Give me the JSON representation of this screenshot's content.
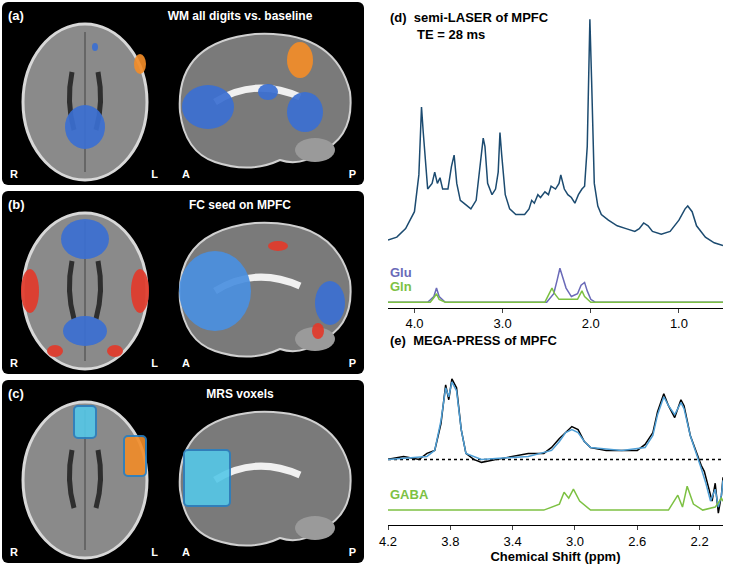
{
  "brain_panels": [
    {
      "label": "(a)",
      "title": "WM all digits vs. baseline",
      "axial_labels": [
        "R",
        "L"
      ],
      "sagittal_labels": [
        "A",
        "P"
      ]
    },
    {
      "label": "(b)",
      "title": "FC seed on MPFC",
      "axial_labels": [
        "R",
        "L"
      ],
      "sagittal_labels": [
        "A",
        "P"
      ]
    },
    {
      "label": "(c)",
      "title": "MRS voxels",
      "axial_labels": [
        "R",
        "L"
      ],
      "sagittal_labels": [
        "A",
        "P"
      ]
    }
  ],
  "chart_data": [
    {
      "type": "line",
      "label": "(d)",
      "title": "semi-LASER of MPFC",
      "subtitle": "TE = 28 ms",
      "xlim": [
        4.3,
        0.5
      ],
      "xticks": [
        {
          "value": 4,
          "label": "4.0"
        },
        {
          "value": 3,
          "label": "3.0"
        },
        {
          "value": 2,
          "label": "2.0"
        },
        {
          "value": 1,
          "label": "1.0"
        }
      ],
      "ylim": [
        -2,
        104
      ],
      "grid": false,
      "tick_labels": "x",
      "series": [
        {
          "color": "#1c4b70",
          "x": [
            4.3,
            4.2,
            4.1,
            4.0,
            3.95,
            3.92,
            3.9,
            3.85,
            3.8,
            3.77,
            3.74,
            3.71,
            3.68,
            3.62,
            3.58,
            3.55,
            3.52,
            3.48,
            3.44,
            3.4,
            3.36,
            3.3,
            3.26,
            3.22,
            3.2,
            3.17,
            3.12,
            3.08,
            3.05,
            3.03,
            3.01,
            2.97,
            2.92,
            2.85,
            2.8,
            2.75,
            2.7,
            2.67,
            2.64,
            2.6,
            2.57,
            2.52,
            2.48,
            2.45,
            2.4,
            2.36,
            2.34,
            2.3,
            2.26,
            2.22,
            2.18,
            2.14,
            2.1,
            2.07,
            2.04,
            2.02,
            2.01,
            1.99,
            1.96,
            1.92,
            1.88,
            1.8,
            1.7,
            1.6,
            1.5,
            1.45,
            1.4,
            1.35,
            1.3,
            1.2,
            1.1,
            1.0,
            0.93,
            0.9,
            0.85,
            0.8,
            0.7,
            0.6,
            0.5
          ],
          "values": [
            22,
            23,
            26,
            32,
            45,
            69,
            60,
            40,
            42,
            46,
            42,
            44,
            40,
            40,
            48,
            52,
            42,
            36,
            35,
            34,
            33,
            36,
            46,
            58,
            55,
            42,
            38,
            40,
            46,
            60,
            52,
            38,
            33,
            31,
            31,
            31,
            33,
            36,
            35,
            38,
            37,
            39,
            38,
            41,
            40,
            42,
            45,
            40,
            38,
            37,
            35,
            38,
            40,
            41,
            55,
            92,
            100,
            78,
            42,
            34,
            31,
            29,
            27,
            26,
            25,
            26,
            28,
            27,
            25,
            24,
            25,
            29,
            33,
            34,
            32,
            27,
            23,
            21,
            20
          ]
        },
        {
          "name": "Glu",
          "color": "#6a6ab8",
          "x": [
            4.3,
            3.85,
            3.78,
            3.75,
            3.72,
            3.65,
            2.5,
            2.42,
            2.38,
            2.35,
            2.32,
            2.28,
            2.22,
            2.15,
            2.11,
            2.07,
            2.04,
            2.0,
            1.95,
            0.5
          ],
          "values": [
            0,
            0,
            2,
            5,
            2,
            0,
            0,
            3,
            8,
            12,
            9,
            5,
            2,
            3,
            6,
            7,
            4,
            1,
            0,
            0
          ]
        },
        {
          "name": "Gln",
          "color": "#7dc143",
          "x": [
            4.3,
            3.82,
            3.77,
            3.75,
            3.72,
            3.65,
            2.52,
            2.47,
            2.44,
            2.41,
            2.36,
            2.15,
            2.12,
            2.1,
            2.07,
            2.0,
            0.5
          ],
          "values": [
            0,
            0,
            2,
            3,
            1,
            0,
            0,
            3,
            5,
            3,
            1,
            1,
            3,
            4,
            2,
            0,
            0
          ]
        }
      ]
    },
    {
      "type": "line",
      "label": "(e)",
      "title": "MEGA-PRESS of MPFC",
      "xlabel": "Chemical Shift (ppm)",
      "xlim": [
        4.2,
        2.05
      ],
      "xticks": [
        4.2,
        3.8,
        3.4,
        {
          "value": 3,
          "label": "3.0"
        },
        2.6,
        2.2
      ],
      "ylim": [
        -22,
        30
      ],
      "grid": false,
      "tick_labels": "x",
      "series": [
        {
          "color": "#000000",
          "line_style": "dot",
          "x": [
            4.2,
            2.05
          ],
          "values": [
            0,
            0
          ]
        },
        {
          "color": "#000000",
          "x": [
            4.2,
            4.1,
            4.0,
            3.95,
            3.9,
            3.86,
            3.83,
            3.81,
            3.79,
            3.76,
            3.73,
            3.7,
            3.65,
            3.6,
            3.5,
            3.4,
            3.3,
            3.2,
            3.15,
            3.1,
            3.06,
            3.02,
            2.98,
            2.94,
            2.9,
            2.8,
            2.7,
            2.6,
            2.55,
            2.5,
            2.47,
            2.43,
            2.4,
            2.36,
            2.32,
            2.3,
            2.26,
            2.22,
            2.19,
            2.17,
            2.14,
            2.12,
            2.1,
            2.08,
            2.06,
            2.05
          ],
          "values": [
            0,
            1,
            0,
            2,
            3,
            12,
            25,
            20,
            27,
            24,
            10,
            2,
            0,
            -1,
            0,
            1,
            2,
            2,
            4,
            7,
            9,
            11,
            10,
            6,
            4,
            3,
            3,
            3,
            5,
            9,
            16,
            22,
            18,
            14,
            20,
            18,
            8,
            2,
            -2,
            -4,
            -10,
            -14,
            -8,
            -18,
            -12,
            -6
          ]
        },
        {
          "color": "#4f9fd6",
          "x": [
            4.2,
            3.95,
            3.9,
            3.86,
            3.83,
            3.81,
            3.79,
            3.76,
            3.73,
            3.7,
            3.6,
            3.3,
            3.15,
            3.1,
            3.06,
            3.02,
            2.98,
            2.94,
            2.9,
            2.7,
            2.55,
            2.5,
            2.47,
            2.43,
            2.4,
            2.36,
            2.32,
            2.3,
            2.26,
            2.22,
            2.19,
            2.16,
            2.13,
            2.1,
            2.08,
            2.06,
            2.05
          ],
          "values": [
            0,
            1,
            3,
            13,
            24,
            21,
            26,
            23,
            10,
            2,
            0,
            1,
            3,
            6,
            9,
            10,
            9,
            6,
            4,
            3,
            4,
            8,
            15,
            21,
            18,
            15,
            19,
            17,
            8,
            2,
            -3,
            -8,
            -14,
            -10,
            -16,
            -12,
            -7
          ]
        },
        {
          "name": "GABA",
          "color": "#7dc143",
          "x": [
            4.2,
            3.2,
            3.1,
            3.07,
            3.04,
            3.01,
            2.97,
            2.9,
            2.4,
            2.34,
            2.31,
            2.28,
            2.24,
            2.18,
            2.1,
            2.06,
            2.05
          ],
          "values": [
            -17,
            -17,
            -15,
            -11,
            -13,
            -10,
            -14,
            -17,
            -17,
            -12,
            -16,
            -9,
            -15,
            -17,
            -16,
            -13,
            -14
          ]
        }
      ]
    }
  ]
}
